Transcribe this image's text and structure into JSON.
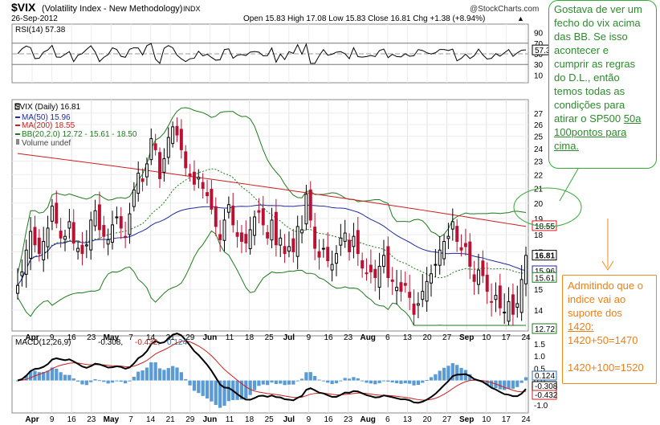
{
  "header": {
    "symbol": "$VIX",
    "name": "(Volatility Index - New Methodology)",
    "exchange": "INDX",
    "date": "26-Sep-2012",
    "copyright": "@StockCharts.com",
    "ohlc": "Open 15.83  High 17.08  Low 15.83  Close 16.81  Chg +1.38 (+8.94%)",
    "chg_arrow": "▲"
  },
  "rsi_panel": {
    "label": "RSI(14) 57.38",
    "ticks": [
      "90",
      "70",
      "50",
      "30",
      "10"
    ],
    "current": "57.38"
  },
  "price_panel": {
    "legend": [
      {
        "text": "$VIX (Daily) 16.81",
        "color": "#000000"
      },
      {
        "text": "MA(50) 15.96",
        "color": "#1f2a9f"
      },
      {
        "text": "MA(200) 18.55",
        "color": "#cc1f1f"
      },
      {
        "text": "BB(20,2.0) 12.72 - 15.61 - 18.50",
        "color": "#1e7a1e"
      },
      {
        "text": "Volume undef",
        "color": "#444444"
      }
    ],
    "ticks": [
      "27",
      "26",
      "25",
      "24",
      "23",
      "22",
      "21",
      "20",
      "19",
      "18",
      "17",
      "16",
      "15",
      "14"
    ],
    "value_labels": [
      "18.55",
      "16.81",
      "15.96",
      "15.61",
      "12.72"
    ]
  },
  "macd_panel": {
    "label_prefix": "MACD(12,26,9)",
    "macd": "-0.308,",
    "signal": "-0.432,",
    "hist": "0.124",
    "ticks": [
      "1.5",
      "1.0",
      "0.5",
      "0.0",
      "-0.5",
      "-1.0"
    ],
    "value_labels": [
      "0.124",
      "-0.308",
      "-0.432"
    ]
  },
  "x_axis": {
    "labels": [
      "Apr",
      "9",
      "16",
      "23",
      "May",
      "7",
      "14",
      "21",
      "29",
      "Jun",
      "11",
      "18",
      "25",
      "Jul",
      "9",
      "16",
      "23",
      "Aug",
      "6",
      "13",
      "20",
      "27",
      "Sep",
      "10",
      "17",
      "24"
    ]
  },
  "notes": {
    "green_lines": [
      "Gostava de ver um",
      "fecho do vix acima",
      "das BB. Se isso",
      "acontecer e",
      "cumprir as regras",
      "do D.L., então",
      "temos todas as",
      "condições para",
      "atirar o SP500",
      "50a",
      "100pontos para",
      "cima."
    ],
    "orange_lines": [
      "Admitindo que o",
      "indice vai ao",
      "suporte dos",
      "1420:",
      "1420+50=1470",
      "1420+100=1520"
    ]
  },
  "colors": {
    "up": "#000000",
    "down": "#bb1133",
    "ma50": "#1f2a9f",
    "ma200": "#cc1f1f",
    "bb": "#1e7a1e",
    "bb_mid": "#1e7a1e",
    "macd_hist": "#5b9bd5",
    "note_green": "#2d8a2d",
    "note_orange": "#ee7f17"
  },
  "chart_data": {
    "type": "line",
    "title": "$VIX (Volatility Index - New Methodology) INDX",
    "price": {
      "close": [
        15.2,
        15.9,
        17.1,
        18.2,
        17.4,
        16.9,
        17.6,
        18.4,
        19.8,
        18.7,
        17.8,
        17.9,
        18.8,
        17.5,
        17.2,
        16.9,
        17.4,
        18.9,
        19.5,
        18.3,
        17.9,
        17.7,
        18.6,
        19.1,
        18.4,
        17.9,
        19.3,
        20.9,
        22.1,
        21.5,
        22.8,
        24.8,
        23.9,
        21.7,
        23.2,
        24.9,
        25.8,
        25.1,
        23.9,
        22.5,
        21.9,
        21.3,
        21.8,
        21.0,
        20.5,
        19.6,
        18.5,
        17.7,
        18.9,
        19.9,
        18.6,
        17.9,
        17.6,
        17.5,
        18.3,
        19.1,
        19.4,
        18.6,
        17.8,
        18.9,
        17.4,
        17.8,
        16.9,
        17.3,
        17.0,
        18.5,
        18.3,
        20.6,
        18.9,
        17.2,
        16.7,
        17.2,
        16.5,
        16.3,
        16.9,
        17.8,
        18.1,
        17.0,
        17.9,
        16.9,
        16.1,
        15.8,
        15.9,
        15.6,
        16.2,
        16.8,
        15.6,
        15.4,
        15.1,
        14.9,
        15.2,
        14.6,
        13.8,
        14.3,
        14.9,
        15.4,
        15.8,
        16.3,
        17.1,
        17.6,
        17.9,
        18.8,
        17.6,
        17.1,
        17.3,
        16.2,
        15.4,
        16.0,
        15.7,
        14.9,
        14.4,
        14.7,
        14.1,
        13.9,
        14.4,
        13.8,
        14.3,
        15.5,
        16.8
      ],
      "ma50_last": 15.96,
      "ma200_last": 18.55,
      "bb_lower_last": 12.72,
      "bb_mid_last": 15.61,
      "bb_upper_last": 18.5,
      "last_close": 16.81,
      "open": 15.83,
      "high": 17.08,
      "low": 15.83,
      "chg": 1.38,
      "chg_pct": 8.94,
      "y_range": [
        13.3,
        27.8
      ]
    },
    "rsi": {
      "period": 14,
      "last": 57.38,
      "levels": [
        70,
        30
      ],
      "y_range": [
        0,
        100
      ]
    },
    "macd": {
      "fast": 12,
      "slow": 26,
      "signal": 9,
      "macd_last": -0.308,
      "signal_last": -0.432,
      "hist_last": 0.124,
      "y_range": [
        -1.2,
        1.7
      ]
    }
  }
}
